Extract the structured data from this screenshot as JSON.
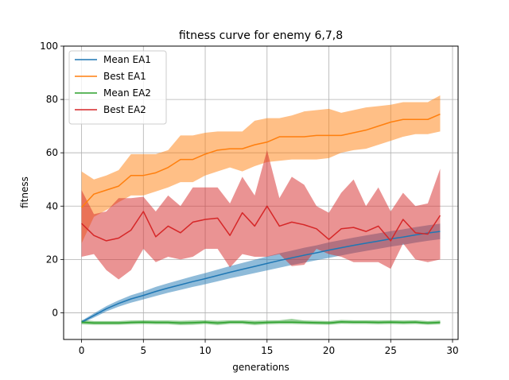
{
  "chart_data": {
    "type": "line",
    "title": "fitness curve for enemy 6,7,8",
    "xlabel": "generations",
    "ylabel": "fitness",
    "xlim": [
      -1.45,
      30.45
    ],
    "ylim": [
      -10,
      100
    ],
    "xticks": [
      0,
      5,
      10,
      15,
      20,
      25,
      30
    ],
    "yticks": [
      0,
      20,
      40,
      60,
      80,
      100
    ],
    "grid": true,
    "legend": "top-left",
    "x": [
      0,
      1,
      2,
      3,
      4,
      5,
      6,
      7,
      8,
      9,
      10,
      11,
      12,
      13,
      14,
      15,
      16,
      17,
      18,
      19,
      20,
      21,
      22,
      23,
      24,
      25,
      26,
      27,
      28,
      29
    ],
    "series": [
      {
        "name": "Mean EA1",
        "color": "#1f77b4",
        "values": [
          -3.5,
          -1,
          1.5,
          3.5,
          5.2,
          6.5,
          8,
          9.3,
          10.5,
          11.7,
          12.8,
          14,
          15.2,
          16.3,
          17.4,
          18.5,
          19.6,
          20.6,
          21.6,
          22.5,
          23.5,
          24.4,
          25.3,
          26.1,
          26.9,
          27.7,
          28.4,
          29.2,
          29.9,
          30.5
        ],
        "band_low": [
          -4,
          -1.8,
          0.5,
          2.3,
          3.8,
          5,
          6.3,
          7.5,
          8.6,
          9.7,
          10.7,
          11.8,
          12.9,
          13.9,
          14.9,
          15.9,
          16.9,
          17.9,
          18.8,
          19.7,
          20.6,
          21.5,
          22.4,
          23.2,
          24,
          24.8,
          25.5,
          26.3,
          27,
          27.6
        ],
        "band_high": [
          -3,
          -0.2,
          2.5,
          4.7,
          6.6,
          8,
          9.7,
          11.1,
          12.4,
          13.7,
          14.9,
          16.2,
          17.5,
          18.7,
          19.9,
          21.1,
          22.3,
          23.3,
          24.4,
          25.3,
          26.4,
          27.3,
          28.2,
          29,
          29.8,
          30.6,
          31.3,
          32.1,
          32.8,
          33.4
        ]
      },
      {
        "name": "Best EA1",
        "color": "#ff7f0e",
        "values": [
          39.5,
          44.5,
          46,
          47.5,
          51.5,
          51.5,
          52.5,
          54.5,
          57.5,
          57.5,
          59.5,
          61,
          61.5,
          61.5,
          63,
          64,
          66,
          66,
          66,
          66.5,
          66.5,
          66.5,
          67.5,
          68.5,
          70,
          71.5,
          72.5,
          72.5,
          72.5,
          74.5
        ],
        "band_low": [
          26,
          36,
          38.5,
          41.5,
          44,
          44,
          45.5,
          47,
          49,
          49,
          51.5,
          53,
          54.5,
          53,
          55,
          56.5,
          57,
          57.5,
          57.5,
          57.5,
          58,
          60,
          61,
          61.5,
          63,
          64.5,
          66,
          67,
          67,
          68
        ],
        "band_high": [
          53,
          50,
          51.5,
          53.5,
          59.5,
          59.5,
          59.5,
          61,
          66.5,
          66.5,
          67.5,
          68,
          68,
          68,
          72,
          73,
          73,
          74,
          75.5,
          76,
          76.5,
          75,
          76,
          77,
          77.5,
          78,
          79,
          79,
          79,
          81.5
        ]
      },
      {
        "name": "Mean EA2",
        "color": "#2ca02c",
        "values": [
          -3.5,
          -3.8,
          -3.8,
          -3.8,
          -3.6,
          -3.5,
          -3.6,
          -3.6,
          -3.8,
          -3.7,
          -3.5,
          -3.8,
          -3.5,
          -3.5,
          -3.8,
          -3.6,
          -3.5,
          -3.5,
          -3.6,
          -3.7,
          -3.8,
          -3.4,
          -3.5,
          -3.5,
          -3.6,
          -3.5,
          -3.6,
          -3.5,
          -3.8,
          -3.6
        ],
        "band_low": [
          -4.3,
          -4.5,
          -4.5,
          -4.5,
          -4.3,
          -4.2,
          -4.3,
          -4.3,
          -4.6,
          -4.5,
          -4.2,
          -4.6,
          -4.2,
          -4.2,
          -4.6,
          -4.3,
          -4.2,
          -4.2,
          -4.3,
          -4.4,
          -4.5,
          -4.1,
          -4.2,
          -4.2,
          -4.3,
          -4.2,
          -4.3,
          -4.2,
          -4.5,
          -4.3
        ],
        "band_high": [
          -2.7,
          -3.1,
          -3.1,
          -3.1,
          -2.9,
          -2.8,
          -2.9,
          -2.9,
          -3,
          -2.9,
          -2.8,
          -3,
          -2.8,
          -2.8,
          -3,
          -2.9,
          -2.8,
          -2.3,
          -2.9,
          -3,
          -3.1,
          -2.7,
          -2.8,
          -2.8,
          -2.9,
          -2.8,
          -2.9,
          -2.8,
          -3.1,
          -2.9
        ]
      },
      {
        "name": "Best EA2",
        "color": "#d62728",
        "values": [
          33.5,
          29,
          27,
          28,
          31,
          38,
          28.5,
          32.5,
          30,
          34,
          35,
          35.5,
          29,
          37.5,
          32.5,
          40,
          32.5,
          34,
          33,
          31.5,
          27.5,
          31.5,
          32,
          30.5,
          32.5,
          27,
          35,
          30,
          29.5,
          36.5
        ],
        "band_low": [
          21,
          22,
          16,
          12.5,
          16,
          24,
          19,
          21,
          20,
          21,
          24,
          24,
          17,
          22,
          21,
          21,
          22,
          17.5,
          18,
          24,
          22,
          21,
          19,
          19,
          19,
          16.5,
          26,
          20,
          19,
          20
        ],
        "band_high": [
          46,
          37,
          38,
          43,
          43,
          43.5,
          38,
          44,
          40,
          47,
          47,
          47,
          41,
          51,
          44,
          61,
          43,
          51,
          48,
          40,
          37.5,
          45,
          50,
          40,
          47,
          38,
          45,
          40,
          41,
          54
        ]
      }
    ]
  }
}
